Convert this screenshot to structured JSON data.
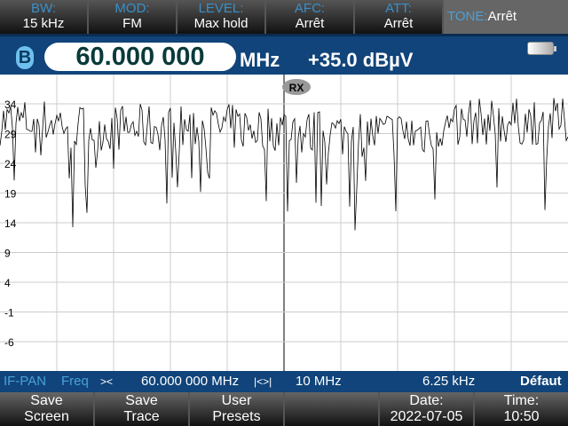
{
  "top_bar": [
    {
      "label": "BW:",
      "value": "15 kHz"
    },
    {
      "label": "MOD:",
      "value": "FM"
    },
    {
      "label": "LEVEL:",
      "value": "Max hold"
    },
    {
      "label": "AFC:",
      "value": "Arrêt"
    },
    {
      "label": "ATT:",
      "value": "Arrêt"
    }
  ],
  "tone": {
    "label": "TONE:",
    "value": "Arrêt"
  },
  "header": {
    "badge": "B",
    "frequency": "60.000 000",
    "unit": "MHz",
    "level": "+35.0 dBµV",
    "battery_icon": "battery-icon"
  },
  "plot": {
    "marker": "RX",
    "y_ticks": [
      "34",
      "29",
      "24",
      "19",
      "14",
      "9",
      "4",
      "-1",
      "-6"
    ]
  },
  "status": {
    "mode": "IF-PAN",
    "freq_label": "Freq",
    "center_icon": "><",
    "center": "60.000 000 MHz",
    "span_icon": "|<>|",
    "span": "10 MHz",
    "step": "6.25 kHz",
    "preset": "Défaut"
  },
  "bottom": [
    {
      "line1": "Save",
      "line2": "Screen"
    },
    {
      "line1": "Save",
      "line2": "Trace"
    },
    {
      "line1": "User",
      "line2": "Presets"
    },
    {
      "line1": "",
      "line2": ""
    },
    {
      "line1": "Date:",
      "line2": "2022-07-05"
    },
    {
      "line1": "Time:",
      "line2": "10:50"
    }
  ],
  "colors": {
    "header_bg": "#10447a",
    "accent": "#3a8fc8"
  }
}
